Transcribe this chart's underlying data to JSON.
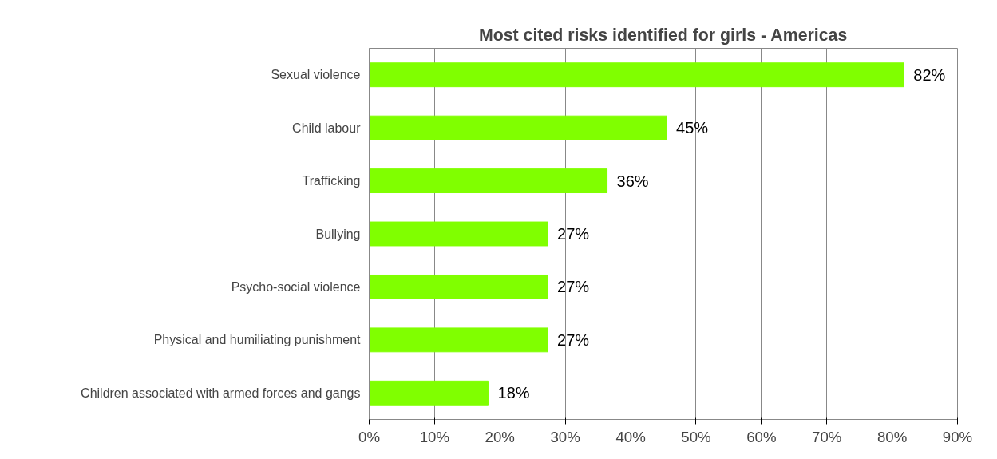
{
  "chart_data": {
    "type": "bar",
    "orientation": "horizontal",
    "title": "Most cited risks identified for girls - Americas",
    "categories": [
      "Sexual violence",
      "Child labour",
      "Trafficking",
      "Bullying",
      "Psycho-social violence",
      "Physical and humiliating punishment",
      "Children associated with armed forces and gangs"
    ],
    "values": [
      81.8,
      45.5,
      36.4,
      27.3,
      27.3,
      27.3,
      18.2
    ],
    "value_labels": [
      "82%",
      "45%",
      "36%",
      "27%",
      "27%",
      "27%",
      "18%"
    ],
    "color": "#80ff00",
    "xlim": [
      0,
      90
    ],
    "xticks": [
      {
        "value": 0,
        "label": "0%"
      },
      {
        "value": 10,
        "label": "10%"
      },
      {
        "value": 20,
        "label": "20%"
      },
      {
        "value": 30,
        "label": "30%"
      },
      {
        "value": 40,
        "label": "40%"
      },
      {
        "value": 50,
        "label": "50%"
      },
      {
        "value": 60,
        "label": "60%"
      },
      {
        "value": 70,
        "label": "70%"
      },
      {
        "value": 80,
        "label": "80%"
      },
      {
        "value": 90,
        "label": "90%"
      }
    ],
    "grid": "x"
  }
}
